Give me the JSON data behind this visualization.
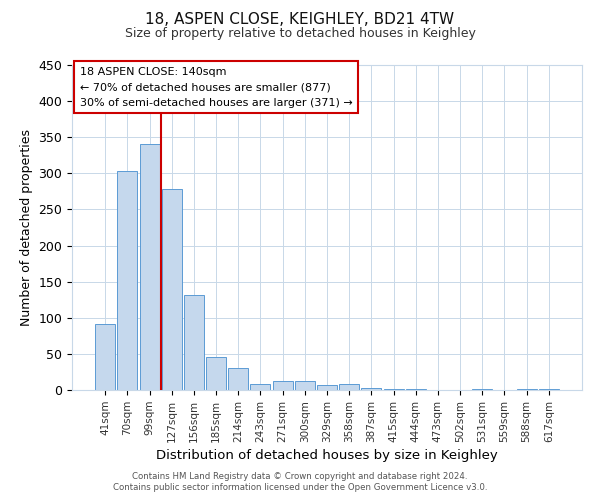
{
  "title": "18, ASPEN CLOSE, KEIGHLEY, BD21 4TW",
  "subtitle": "Size of property relative to detached houses in Keighley",
  "xlabel": "Distribution of detached houses by size in Keighley",
  "ylabel": "Number of detached properties",
  "bar_labels": [
    "41sqm",
    "70sqm",
    "99sqm",
    "127sqm",
    "156sqm",
    "185sqm",
    "214sqm",
    "243sqm",
    "271sqm",
    "300sqm",
    "329sqm",
    "358sqm",
    "387sqm",
    "415sqm",
    "444sqm",
    "473sqm",
    "502sqm",
    "531sqm",
    "559sqm",
    "588sqm",
    "617sqm"
  ],
  "bar_values": [
    92,
    303,
    341,
    278,
    131,
    46,
    30,
    9,
    13,
    13,
    7,
    9,
    3,
    1,
    1,
    0,
    0,
    2,
    0,
    1,
    2
  ],
  "bar_color": "#c5d8ed",
  "bar_edgecolor": "#5b9bd5",
  "vline_color": "#cc0000",
  "ylim": [
    0,
    450
  ],
  "yticks": [
    0,
    50,
    100,
    150,
    200,
    250,
    300,
    350,
    400,
    450
  ],
  "annotation_title": "18 ASPEN CLOSE: 140sqm",
  "annotation_line1": "← 70% of detached houses are smaller (877)",
  "annotation_line2": "30% of semi-detached houses are larger (371) →",
  "annotation_box_color": "#ffffff",
  "annotation_box_edgecolor": "#cc0000",
  "footer1": "Contains HM Land Registry data © Crown copyright and database right 2024.",
  "footer2": "Contains public sector information licensed under the Open Government Licence v3.0.",
  "background_color": "#ffffff",
  "grid_color": "#c8d8e8"
}
